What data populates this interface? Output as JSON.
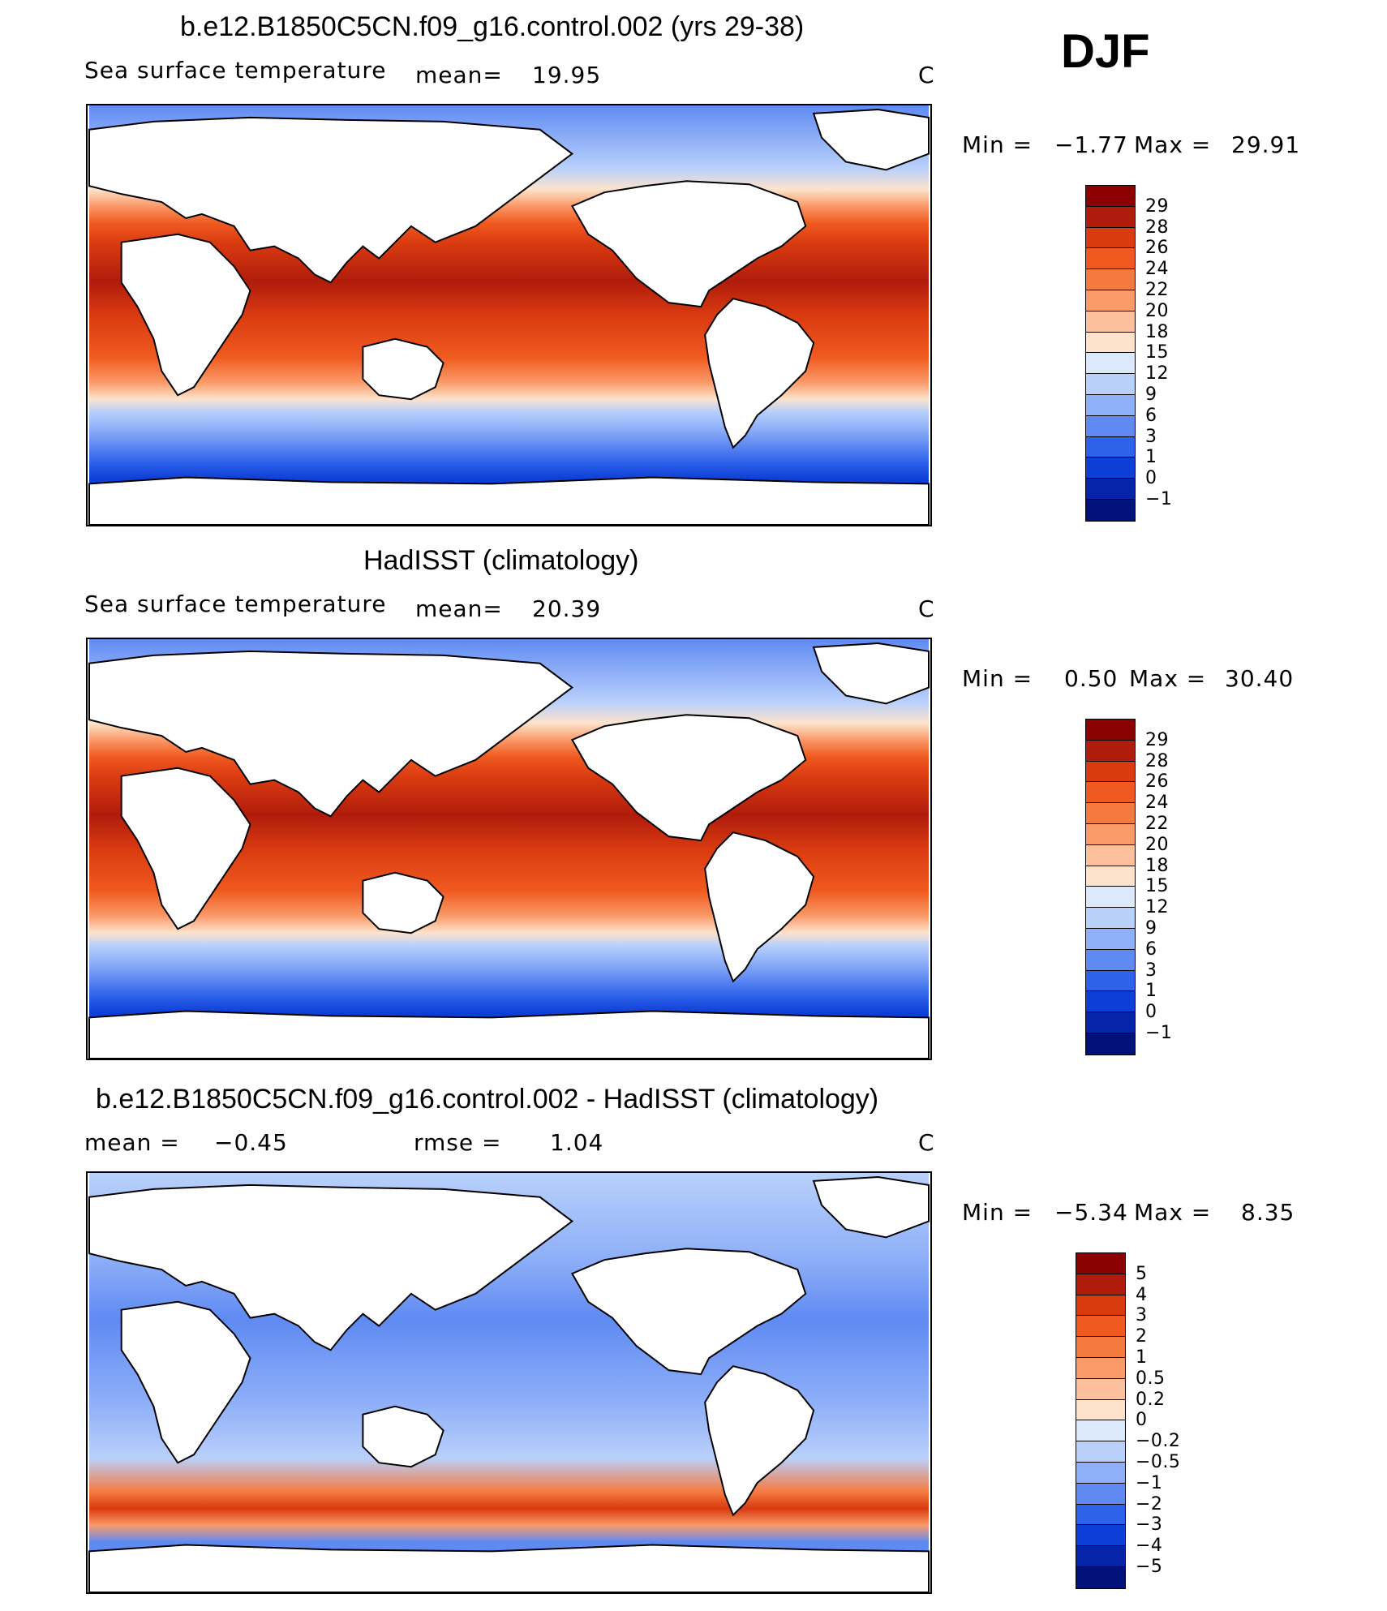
{
  "season": "DJF",
  "panels": [
    {
      "title": "b.e12.B1850C5CN.f09_g16.control.002 (yrs 29-38)",
      "left_label": "Sea surface temperature",
      "mean_label": "mean=",
      "mean_value": "19.95",
      "units": "C",
      "min_label": "Min  =",
      "min_value": "−1.77",
      "max_label": "Max  =",
      "max_value": "29.91",
      "colorbar": {
        "labels": [
          "29",
          "28",
          "26",
          "24",
          "22",
          "20",
          "18",
          "15",
          "12",
          "9",
          "6",
          "3",
          "1",
          "0",
          "−1"
        ],
        "colors": [
          "#8b0000",
          "#b01c0c",
          "#d93a10",
          "#f05a20",
          "#f57a40",
          "#fa9a68",
          "#fcc09c",
          "#fde3cc",
          "#dce9fb",
          "#b9d0fb",
          "#8fb0f8",
          "#5f8af2",
          "#2e62ea",
          "#0d3fd6",
          "#0524a8",
          "#01117a"
        ]
      }
    },
    {
      "title": "HadISST (climatology)",
      "left_label": "Sea surface temperature",
      "mean_label": "mean=",
      "mean_value": "20.39",
      "units": "C",
      "min_label": "Min  =",
      "min_value": "0.50",
      "max_label": "Max  =",
      "max_value": "30.40",
      "colorbar": {
        "labels": [
          "29",
          "28",
          "26",
          "24",
          "22",
          "20",
          "18",
          "15",
          "12",
          "9",
          "6",
          "3",
          "1",
          "0",
          "−1"
        ],
        "colors": [
          "#8b0000",
          "#b01c0c",
          "#d93a10",
          "#f05a20",
          "#f57a40",
          "#fa9a68",
          "#fcc09c",
          "#fde3cc",
          "#dce9fb",
          "#b9d0fb",
          "#8fb0f8",
          "#5f8af2",
          "#2e62ea",
          "#0d3fd6",
          "#0524a8",
          "#01117a"
        ]
      }
    },
    {
      "title": "b.e12.B1850C5CN.f09_g16.control.002 - HadISST (climatology)",
      "mean_label": "mean =",
      "mean_value": "−0.45",
      "rmse_label": "rmse =",
      "rmse_value": "1.04",
      "units": "C",
      "min_label": "Min  =",
      "min_value": "−5.34",
      "max_label": "Max  =",
      "max_value": "8.35",
      "colorbar": {
        "labels": [
          "5",
          "4",
          "3",
          "2",
          "1",
          "0.5",
          "0.2",
          "0",
          "−0.2",
          "−0.5",
          "−1",
          "−2",
          "−3",
          "−4",
          "−5"
        ],
        "colors": [
          "#8b0000",
          "#b01c0c",
          "#d93a10",
          "#f05a20",
          "#f57a40",
          "#fa9a68",
          "#fcc09c",
          "#fde3cc",
          "#dce9fb",
          "#b9d0fb",
          "#8fb0f8",
          "#5f8af2",
          "#2e62ea",
          "#0d3fd6",
          "#0524a8",
          "#01117a"
        ]
      }
    }
  ]
}
